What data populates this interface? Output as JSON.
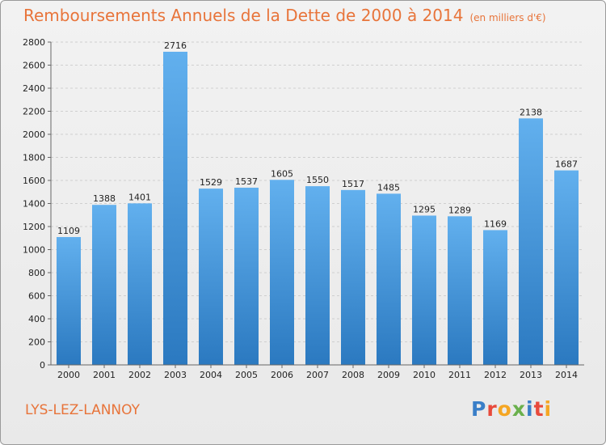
{
  "title": "Remboursements Annuels de la Dette de 2000 à 2014",
  "unit_note": "(en milliers d'€)",
  "town": "LYS-LEZ-LANNOY",
  "logo": {
    "letters": [
      "P",
      "r",
      "o",
      "x",
      "i",
      "t",
      "i"
    ],
    "colors": [
      "#3a7fc8",
      "#e84a3c",
      "#f5a623",
      "#6ab04c",
      "#3a7fc8",
      "#e84a3c",
      "#f5a623"
    ]
  },
  "colors": {
    "bar_top": "#62b0ee",
    "bar_bottom": "#2b79c0",
    "title": "#e8743a"
  },
  "chart_data": {
    "type": "bar",
    "categories": [
      "2000",
      "2001",
      "2002",
      "2003",
      "2004",
      "2005",
      "2006",
      "2007",
      "2008",
      "2009",
      "2010",
      "2011",
      "2012",
      "2013",
      "2014"
    ],
    "values": [
      1109,
      1388,
      1401,
      2716,
      1529,
      1537,
      1605,
      1550,
      1517,
      1485,
      1295,
      1289,
      1169,
      2138,
      1687
    ],
    "data_labels": [
      "1109",
      "1388",
      "1401",
      "2716",
      "1529",
      "1537",
      "1605",
      "1550",
      "1517",
      "1485",
      "1295",
      "1289",
      "1169",
      "2138",
      "1687"
    ],
    "ylim": [
      0,
      2800
    ],
    "yticks": [
      "0",
      "200",
      "400",
      "600",
      "800",
      "1000",
      "1200",
      "1400",
      "1600",
      "1800",
      "2000",
      "2200",
      "2400",
      "2600",
      "2800"
    ],
    "grid": true
  }
}
